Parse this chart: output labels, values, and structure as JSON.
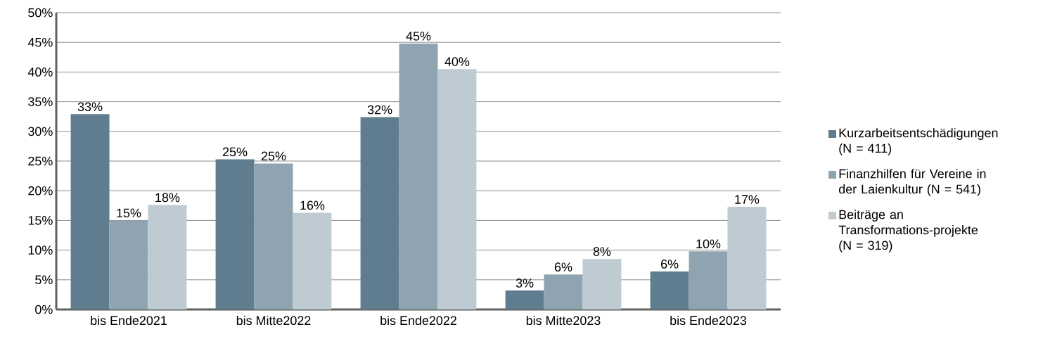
{
  "chart_data": {
    "type": "bar",
    "categories": [
      "bis Ende2021",
      "bis Mitte2022",
      "bis Ende2022",
      "bis Mitte2023",
      "bis Ende2023"
    ],
    "series": [
      {
        "name": "Kurzarbeitsentschädigungen (N = 411)",
        "color": "#5f7d8e",
        "values": [
          32.9,
          25.3,
          32.4,
          3.2,
          6.4
        ],
        "value_labels": [
          "33%",
          "25%",
          "32%",
          "3%",
          "6%"
        ]
      },
      {
        "name": "Finanzhilfen für Vereine in der Laienkultur (N = 541)",
        "color": "#8fa4b0",
        "values": [
          15.0,
          24.6,
          44.8,
          5.9,
          9.8
        ],
        "value_labels": [
          "15%",
          "25%",
          "45%",
          "6%",
          "10%"
        ]
      },
      {
        "name": "Beiträge an Transformations-projekte (N = 319)",
        "color": "#bfcbd3",
        "values": [
          17.6,
          16.3,
          40.5,
          8.5,
          17.3
        ],
        "value_labels": [
          "18%",
          "16%",
          "40%",
          "8%",
          "17%"
        ]
      }
    ],
    "ylim": [
      0,
      50
    ],
    "yticks": [
      {
        "value": 0,
        "label": "0%"
      },
      {
        "value": 5,
        "label": "5%"
      },
      {
        "value": 10,
        "label": "10%"
      },
      {
        "value": 15,
        "label": "15%"
      },
      {
        "value": 20,
        "label": "20%"
      },
      {
        "value": 25,
        "label": "25%"
      },
      {
        "value": 30,
        "label": "30%"
      },
      {
        "value": 35,
        "label": "35%"
      },
      {
        "value": 40,
        "label": "40%"
      },
      {
        "value": 45,
        "label": "45%"
      },
      {
        "value": 50,
        "label": "50%"
      }
    ],
    "grid": "y",
    "legend": "right"
  }
}
